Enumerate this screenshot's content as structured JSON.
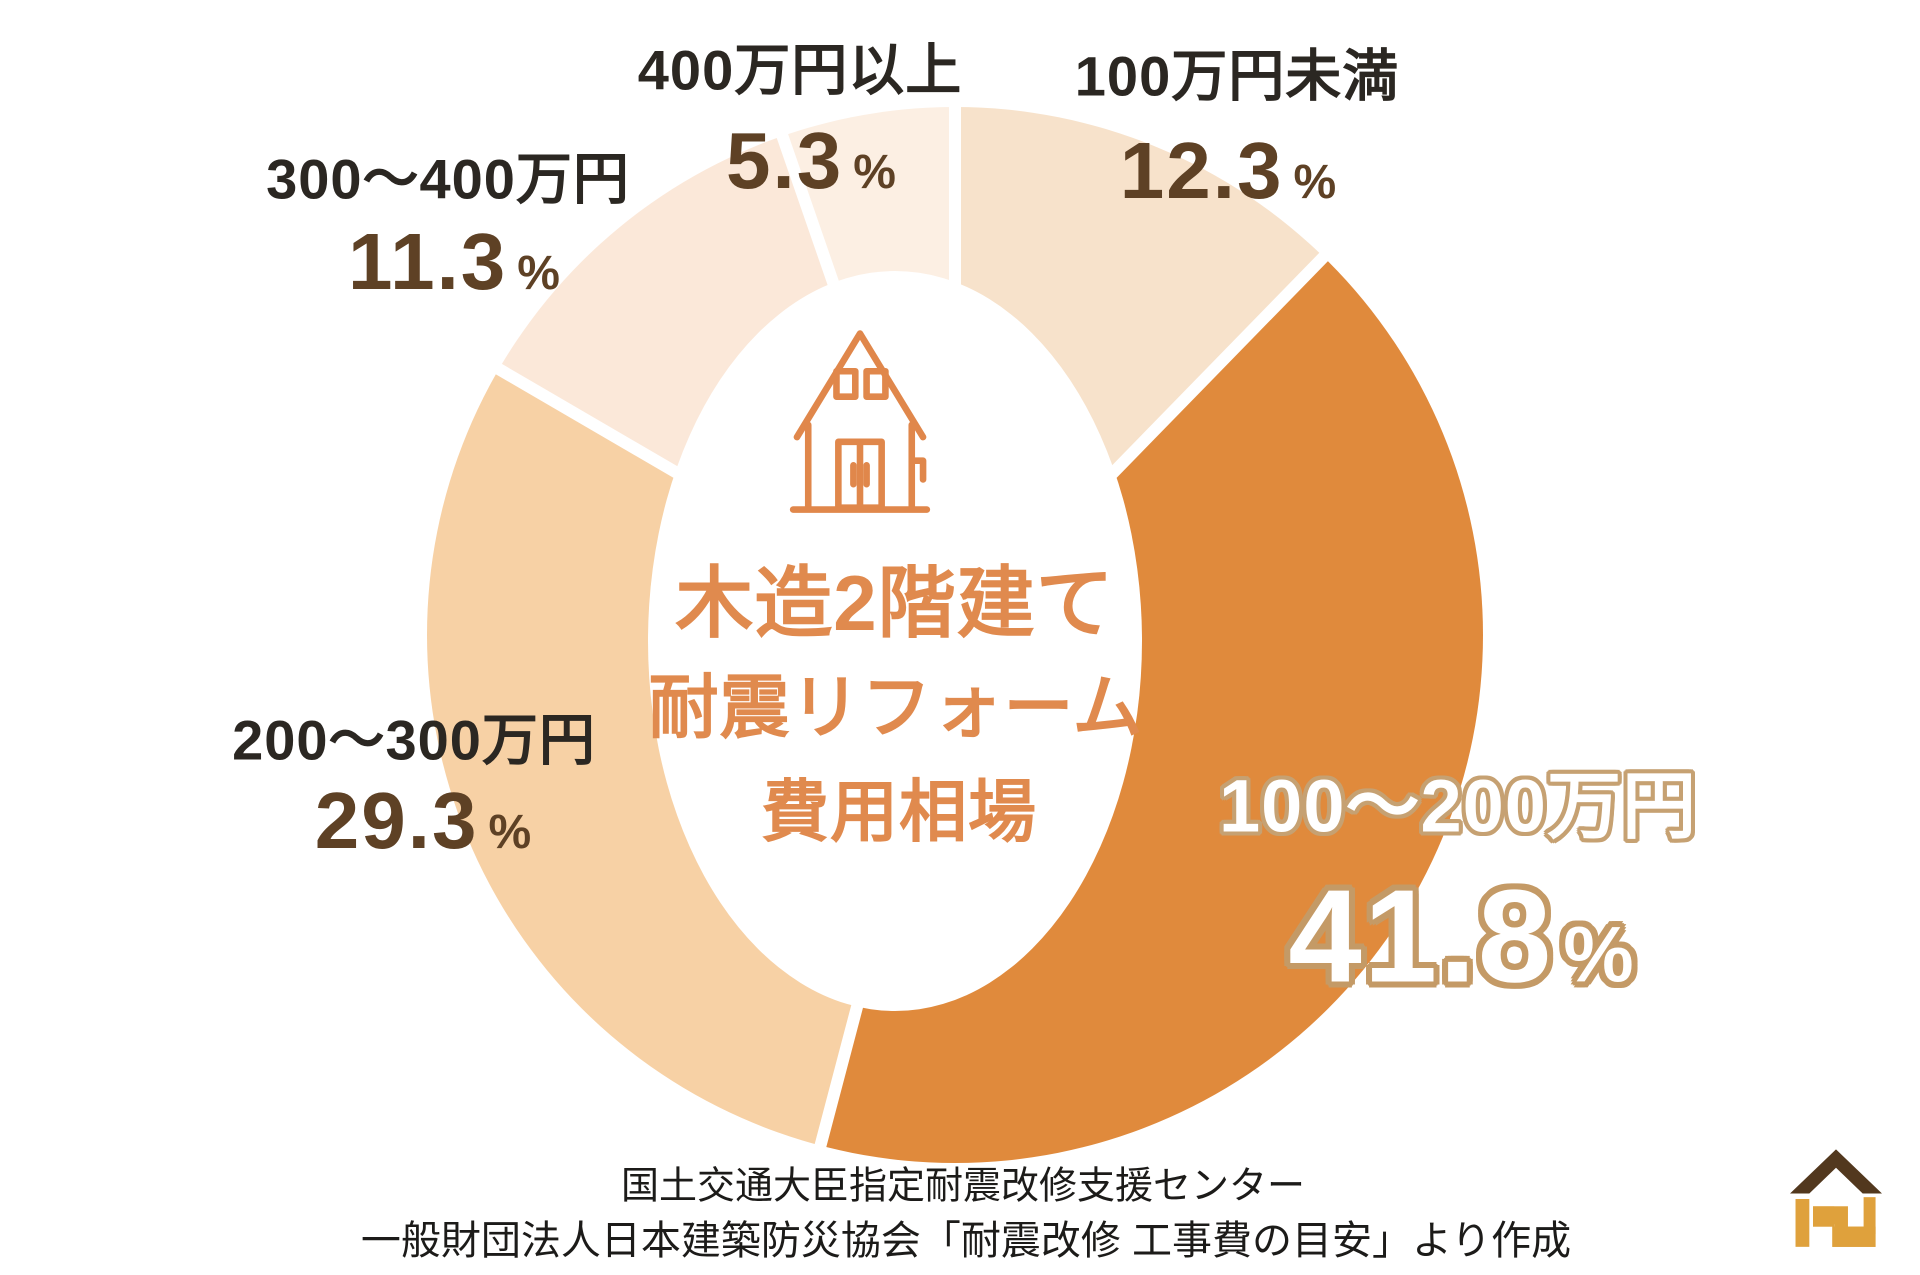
{
  "percent_sign": "%",
  "chart_data": {
    "type": "pie",
    "donut": true,
    "direction": "clockwise",
    "start_angle_deg": 0,
    "title": "木造2階建て 耐震リフォーム 費用相場",
    "center_title_lines": [
      "木造2階建て",
      "耐震リフォーム",
      "費用相場"
    ],
    "center_icon": "house-outline-icon",
    "slices": [
      {
        "label": "100万円未満",
        "value": 12.3,
        "color": "#f7e2cb"
      },
      {
        "label": "100〜200万円",
        "value": 41.8,
        "color": "#e08a3c"
      },
      {
        "label": "200〜300万円",
        "value": 29.3,
        "color": "#f7d1a5"
      },
      {
        "label": "300〜400万円",
        "value": 11.3,
        "color": "#fbe8d9"
      },
      {
        "label": "400万円以上",
        "value": 5.3,
        "color": "#fcefe3"
      }
    ],
    "legend": "none",
    "source_lines": [
      "国土交通大臣指定耐震改修支援センター",
      "一般財団法人日本建築防災協会「耐震改修 工事費の目安」より作成"
    ]
  },
  "colors": {
    "accent_orange": "#e08a4e",
    "value_brown": "#5e4125",
    "label_dark": "#2b2722",
    "white_label_outline": "#c6a172",
    "logo_roof_brown": "#52381e",
    "logo_body_gold": "#dfa13c",
    "background": "#ffffff"
  }
}
